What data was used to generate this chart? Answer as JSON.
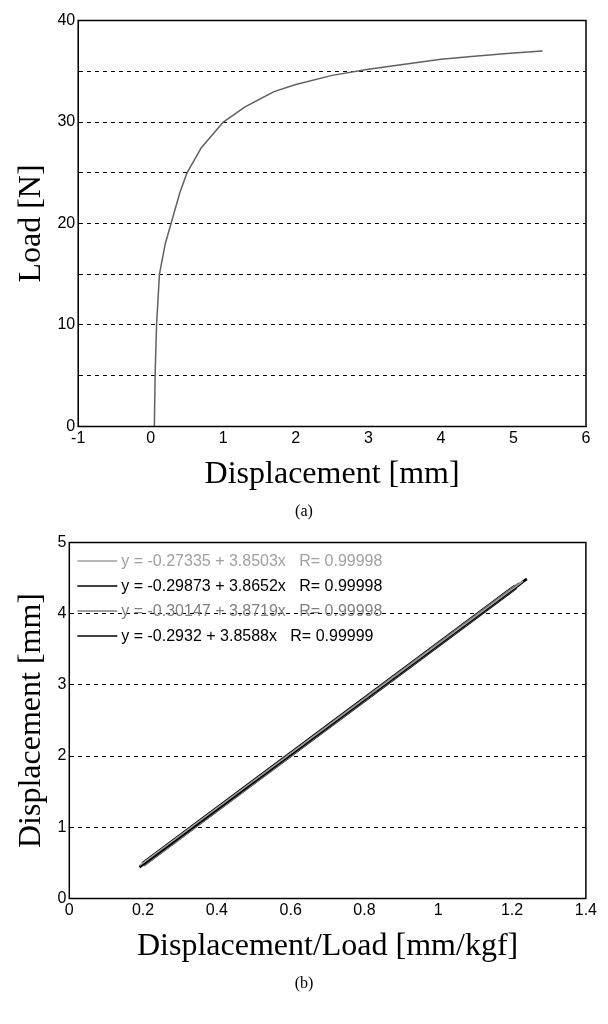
{
  "chart_data": [
    {
      "type": "line",
      "xlabel": "Displacement [mm]",
      "ylabel": "Load [N]",
      "annotations": [
        "(a)"
      ],
      "xlim": [
        -1,
        6
      ],
      "xticks": [
        -1,
        0,
        1,
        2,
        3,
        4,
        5,
        6
      ],
      "ylim": [
        0,
        40
      ],
      "yticks": [
        0,
        {
          "value": 5,
          "label": null
        },
        10,
        {
          "value": 15,
          "label": null
        },
        20,
        {
          "value": 25,
          "label": null
        },
        30,
        {
          "value": 35,
          "label": null
        },
        40
      ],
      "grid": "y",
      "legend": false,
      "series": [
        {
          "color": "#606060",
          "x": [
            0.05,
            0.06,
            0.08,
            0.12,
            0.2,
            0.28,
            0.4,
            0.5,
            0.7,
            1.0,
            1.3,
            1.7,
            2.0,
            2.5,
            3.0,
            3.5,
            4.0,
            4.5,
            5.0,
            5.4
          ],
          "values": [
            0,
            5,
            10,
            15,
            18,
            20,
            23,
            25,
            27.5,
            30,
            31.5,
            33,
            33.7,
            34.6,
            35.2,
            35.7,
            36.2,
            36.5,
            36.8,
            37.0
          ]
        }
      ]
    },
    {
      "type": "line",
      "xlabel": "Displacement/Load [mm/kgf]",
      "ylabel": "Displacement [mm]",
      "annotations": [
        "(b)"
      ],
      "xlim": [
        0,
        1.4
      ],
      "xticks": [
        0,
        0.2,
        0.4,
        0.6,
        0.8,
        1,
        1.2,
        1.4
      ],
      "ylim": [
        0,
        5
      ],
      "yticks": [
        0,
        1,
        2,
        3,
        4,
        5
      ],
      "grid": "y",
      "legend": "top left",
      "series": [
        {
          "name": "y = -0.27335 + 3.8503x   R= 0.99998",
          "color": "#a0a0a0",
          "x": [
            0.19,
            1.23
          ],
          "values": [
            0.46,
            4.46
          ]
        },
        {
          "name": "y = -0.29873 + 3.8652x   R= 0.99998",
          "color": "#000000",
          "x": [
            0.19,
            1.24
          ],
          "values": [
            0.44,
            4.49
          ]
        },
        {
          "name": "y = -0.30147 + 3.8719x   R= 0.99998",
          "color": "#808080",
          "x": [
            0.2,
            1.22
          ],
          "values": [
            0.47,
            4.42
          ]
        },
        {
          "name": "y = -0.2932 + 3.8588x   R= 0.99999",
          "color": "#000000",
          "x": [
            0.2,
            1.21
          ],
          "values": [
            0.48,
            4.38
          ]
        }
      ]
    }
  ]
}
